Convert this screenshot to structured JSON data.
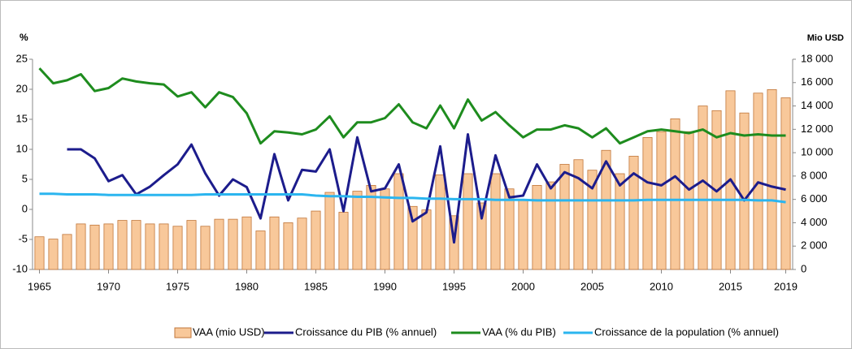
{
  "chart_data": {
    "type": "bar-line",
    "y_label": "%",
    "y2_label": "Mio USD",
    "x": [
      1965,
      1966,
      1967,
      1968,
      1969,
      1970,
      1971,
      1972,
      1973,
      1974,
      1975,
      1976,
      1977,
      1978,
      1979,
      1980,
      1981,
      1982,
      1983,
      1984,
      1985,
      1986,
      1987,
      1988,
      1989,
      1990,
      1991,
      1992,
      1993,
      1994,
      1995,
      1996,
      1997,
      1998,
      1999,
      2000,
      2001,
      2002,
      2003,
      2004,
      2005,
      2006,
      2007,
      2008,
      2009,
      2010,
      2011,
      2012,
      2013,
      2014,
      2015,
      2016,
      2017,
      2018,
      2019
    ],
    "xlim": [
      1964.5,
      2019.5
    ],
    "xticks": [
      1965,
      1970,
      1975,
      1980,
      1985,
      1990,
      1995,
      2000,
      2005,
      2010,
      2015,
      2019
    ],
    "ylim": [
      -10,
      25
    ],
    "yticks": [
      -10,
      -5,
      0,
      5,
      10,
      15,
      20,
      25
    ],
    "y2lim": [
      0,
      18000
    ],
    "y2ticks": [
      0,
      {
        "value": 2000,
        "label": "2 000"
      },
      {
        "value": 4000,
        "label": "4 000"
      },
      {
        "value": 6000,
        "label": "6 000"
      },
      {
        "value": 8000,
        "label": "8 000"
      },
      {
        "value": 10000,
        "label": "10 000"
      },
      {
        "value": 12000,
        "label": "12 000"
      },
      {
        "value": 14000,
        "label": "14 000"
      },
      {
        "value": 16000,
        "label": "16 000"
      },
      {
        "value": 18000,
        "label": "18 000"
      }
    ],
    "series": [
      {
        "name": "VAA (mio USD)",
        "type": "bar",
        "axis": "y2",
        "color": "#f8c89a",
        "values": [
          2800,
          2600,
          3000,
          3900,
          3800,
          3900,
          4200,
          4200,
          3900,
          3900,
          3700,
          4200,
          3700,
          4300,
          4300,
          4500,
          3300,
          4500,
          4000,
          4400,
          5000,
          6600,
          4900,
          6700,
          7200,
          6900,
          8200,
          5400,
          5100,
          8100,
          4600,
          8200,
          5700,
          8200,
          6900,
          5900,
          7200,
          7500,
          9000,
          9400,
          8500,
          10200,
          8200,
          9700,
          11300,
          11800,
          12900,
          11800,
          14000,
          13600,
          15300,
          13400,
          15100,
          15400,
          14700
        ]
      },
      {
        "name": "Croissance du PIB (% annuel)",
        "type": "line",
        "color": "#1c1c8c",
        "values": [
          null,
          null,
          10,
          10,
          8.5,
          4.7,
          5.7,
          2.5,
          3.8,
          5.7,
          7.5,
          10.8,
          6,
          2.3,
          5,
          3.7,
          -1.5,
          9.2,
          1.5,
          6.6,
          6.3,
          10,
          -0.3,
          12,
          3,
          3.5,
          7.5,
          -2,
          -0.5,
          10.5,
          -5.5,
          12.5,
          -1.5,
          9,
          2,
          2.3,
          7.5,
          3.5,
          6.2,
          5.2,
          3.5,
          8,
          4,
          6,
          4.5,
          4,
          5.5,
          3.3,
          4.8,
          3,
          5,
          1.5,
          4.5,
          3.8,
          3.3
        ]
      },
      {
        "name": "VAA (% du PIB)",
        "type": "line",
        "color": "#1e8c1e",
        "values": [
          23.5,
          21,
          21.5,
          22.5,
          19.7,
          20.2,
          21.8,
          21.3,
          21,
          20.8,
          18.8,
          19.5,
          17,
          19.5,
          18.7,
          16,
          11,
          13,
          12.8,
          12.5,
          13.3,
          15.5,
          12,
          14.5,
          14.5,
          15.2,
          17.5,
          14.5,
          13.5,
          17.3,
          13.5,
          18.3,
          14.8,
          16.2,
          14,
          12,
          13.3,
          13.3,
          14,
          13.5,
          12,
          13.5,
          11,
          12,
          13,
          13.3,
          13,
          12.7,
          13.3,
          12,
          12.7,
          12.3,
          12.5,
          12.3,
          12.3
        ]
      },
      {
        "name": "Croissance de la population (% annuel)",
        "type": "line",
        "color": "#2bb5ef",
        "values": [
          2.6,
          2.6,
          2.5,
          2.5,
          2.5,
          2.4,
          2.4,
          2.4,
          2.4,
          2.4,
          2.4,
          2.4,
          2.5,
          2.5,
          2.5,
          2.5,
          2.5,
          2.5,
          2.5,
          2.5,
          2.3,
          2.2,
          2.2,
          2.1,
          2.1,
          2.0,
          1.9,
          1.9,
          1.8,
          1.8,
          1.7,
          1.7,
          1.7,
          1.6,
          1.6,
          1.6,
          1.5,
          1.5,
          1.5,
          1.5,
          1.5,
          1.5,
          1.5,
          1.5,
          1.6,
          1.6,
          1.6,
          1.6,
          1.6,
          1.6,
          1.6,
          1.6,
          1.5,
          1.5,
          1.2
        ]
      }
    ]
  }
}
